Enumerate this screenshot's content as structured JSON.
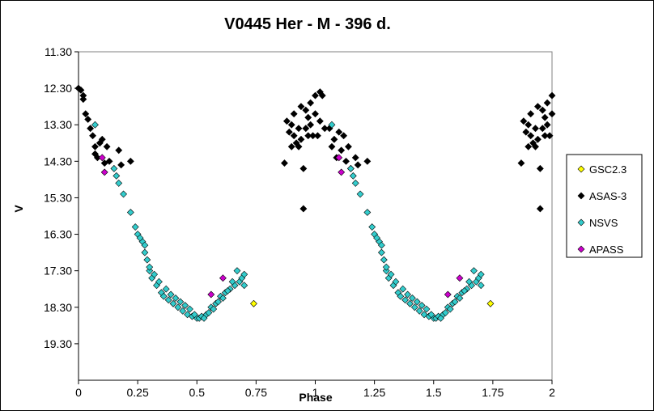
{
  "chart_data": {
    "type": "scatter",
    "title": "V0445 Her - M - 396 d.",
    "xlabel": "Phase",
    "ylabel": "V",
    "xlim": [
      0,
      2
    ],
    "ylim": [
      11.3,
      20.3
    ],
    "y_inverted": true,
    "x_ticks": [
      "0",
      "0.25",
      "0.5",
      "0.75",
      "1",
      "1.25",
      "1.5",
      "1.75",
      "2"
    ],
    "y_ticks": [
      "11.30",
      "12.30",
      "13.30",
      "14.30",
      "15.30",
      "16.30",
      "17.30",
      "18.30",
      "19.30"
    ],
    "legend_position": "right",
    "grid": false,
    "series": [
      {
        "name": "GSC2.3",
        "color": "#ffff00",
        "points": [
          [
            0.74,
            18.2
          ],
          [
            1.74,
            18.2
          ]
        ]
      },
      {
        "name": "ASAS-3",
        "color": "#000000",
        "points": [
          [
            0.0,
            12.3
          ],
          [
            0.01,
            12.35
          ],
          [
            0.02,
            12.5
          ],
          [
            0.02,
            12.6
          ],
          [
            0.03,
            13.0
          ],
          [
            0.04,
            13.15
          ],
          [
            0.05,
            13.4
          ],
          [
            0.06,
            13.6
          ],
          [
            0.07,
            13.9
          ],
          [
            0.07,
            14.1
          ],
          [
            0.08,
            14.2
          ],
          [
            0.09,
            13.8
          ],
          [
            0.1,
            13.7
          ],
          [
            0.11,
            14.35
          ],
          [
            0.12,
            13.9
          ],
          [
            0.13,
            14.3
          ],
          [
            0.17,
            14.0
          ],
          [
            0.18,
            14.4
          ],
          [
            0.22,
            14.3
          ],
          [
            0.87,
            14.35
          ],
          [
            0.88,
            13.2
          ],
          [
            0.89,
            13.5
          ],
          [
            0.9,
            13.3
          ],
          [
            0.9,
            13.9
          ],
          [
            0.91,
            13.0
          ],
          [
            0.91,
            13.6
          ],
          [
            0.92,
            13.8
          ],
          [
            0.93,
            13.4
          ],
          [
            0.93,
            13.9
          ],
          [
            0.94,
            12.8
          ],
          [
            0.94,
            13.7
          ],
          [
            0.95,
            14.5
          ],
          [
            0.95,
            15.6
          ],
          [
            0.96,
            12.9
          ],
          [
            0.96,
            13.4
          ],
          [
            0.97,
            13.1
          ],
          [
            0.97,
            13.6
          ],
          [
            0.98,
            12.7
          ],
          [
            0.98,
            13.3
          ],
          [
            0.99,
            13.6
          ],
          [
            1.0,
            12.5
          ],
          [
            1.0,
            13.0
          ],
          [
            1.01,
            13.6
          ],
          [
            1.02,
            12.4
          ],
          [
            1.02,
            13.2
          ],
          [
            1.03,
            12.5
          ],
          [
            1.04,
            13.4
          ],
          [
            1.06,
            13.4
          ],
          [
            1.07,
            13.9
          ],
          [
            1.08,
            13.7
          ],
          [
            1.09,
            14.2
          ],
          [
            1.1,
            13.5
          ],
          [
            1.11,
            14.0
          ],
          [
            1.12,
            13.6
          ],
          [
            1.13,
            14.3
          ],
          [
            1.14,
            13.9
          ],
          [
            1.15,
            14.5
          ],
          [
            1.17,
            14.2
          ],
          [
            1.18,
            14.4
          ],
          [
            1.22,
            14.3
          ],
          [
            1.87,
            14.35
          ],
          [
            1.88,
            13.2
          ],
          [
            1.89,
            13.5
          ],
          [
            1.9,
            13.3
          ],
          [
            1.9,
            13.9
          ],
          [
            1.91,
            13.0
          ],
          [
            1.91,
            13.6
          ],
          [
            1.92,
            13.8
          ],
          [
            1.93,
            13.4
          ],
          [
            1.93,
            13.9
          ],
          [
            1.94,
            12.8
          ],
          [
            1.94,
            13.7
          ],
          [
            1.95,
            14.5
          ],
          [
            1.95,
            15.6
          ],
          [
            1.96,
            12.9
          ],
          [
            1.96,
            13.4
          ],
          [
            1.97,
            13.1
          ],
          [
            1.97,
            13.6
          ],
          [
            1.98,
            12.7
          ],
          [
            1.98,
            13.3
          ],
          [
            1.99,
            13.6
          ],
          [
            2.0,
            12.5
          ],
          [
            2.0,
            13.0
          ]
        ]
      },
      {
        "name": "NSVS",
        "color": "#33cccc",
        "points": [
          [
            0.07,
            13.3
          ],
          [
            0.15,
            14.5
          ],
          [
            0.16,
            14.7
          ],
          [
            0.17,
            14.9
          ],
          [
            0.19,
            15.2
          ],
          [
            0.22,
            15.7
          ],
          [
            0.24,
            16.1
          ],
          [
            0.25,
            16.3
          ],
          [
            0.27,
            16.5
          ],
          [
            0.28,
            16.8
          ],
          [
            0.29,
            17.0
          ],
          [
            0.3,
            17.3
          ],
          [
            0.31,
            17.5
          ],
          [
            0.33,
            17.7
          ],
          [
            0.35,
            17.9
          ],
          [
            0.36,
            18.0
          ],
          [
            0.38,
            18.1
          ],
          [
            0.4,
            18.2
          ],
          [
            0.42,
            18.3
          ],
          [
            0.44,
            18.4
          ],
          [
            0.46,
            18.5
          ],
          [
            0.48,
            18.55
          ],
          [
            0.5,
            18.6
          ],
          [
            0.51,
            18.6
          ],
          [
            0.52,
            18.55
          ],
          [
            0.54,
            18.5
          ],
          [
            0.56,
            18.3
          ],
          [
            0.58,
            18.2
          ],
          [
            0.6,
            18.0
          ],
          [
            0.62,
            17.9
          ],
          [
            0.64,
            17.8
          ],
          [
            0.66,
            17.7
          ],
          [
            0.68,
            17.6
          ],
          [
            0.69,
            17.5
          ],
          [
            0.7,
            17.4
          ],
          [
            0.7,
            17.7
          ],
          [
            0.67,
            17.3
          ],
          [
            0.65,
            17.6
          ],
          [
            0.63,
            17.85
          ],
          [
            0.61,
            18.05
          ],
          [
            0.59,
            18.15
          ],
          [
            0.57,
            18.35
          ],
          [
            0.55,
            18.45
          ],
          [
            0.53,
            18.6
          ],
          [
            0.49,
            18.5
          ],
          [
            0.47,
            18.35
          ],
          [
            0.45,
            18.25
          ],
          [
            0.43,
            18.15
          ],
          [
            0.41,
            18.05
          ],
          [
            0.39,
            17.95
          ],
          [
            0.37,
            17.8
          ],
          [
            0.34,
            17.6
          ],
          [
            0.32,
            17.4
          ],
          [
            0.3,
            17.2
          ],
          [
            0.28,
            16.6
          ],
          [
            0.26,
            16.4
          ],
          [
            1.07,
            13.3
          ],
          [
            1.15,
            14.5
          ],
          [
            1.16,
            14.7
          ],
          [
            1.17,
            14.9
          ],
          [
            1.19,
            15.2
          ],
          [
            1.22,
            15.7
          ],
          [
            1.24,
            16.1
          ],
          [
            1.25,
            16.3
          ],
          [
            1.27,
            16.5
          ],
          [
            1.28,
            16.8
          ],
          [
            1.29,
            17.0
          ],
          [
            1.3,
            17.3
          ],
          [
            1.31,
            17.5
          ],
          [
            1.33,
            17.7
          ],
          [
            1.35,
            17.9
          ],
          [
            1.36,
            18.0
          ],
          [
            1.38,
            18.1
          ],
          [
            1.4,
            18.2
          ],
          [
            1.42,
            18.3
          ],
          [
            1.44,
            18.4
          ],
          [
            1.46,
            18.5
          ],
          [
            1.48,
            18.55
          ],
          [
            1.5,
            18.6
          ],
          [
            1.51,
            18.6
          ],
          [
            1.52,
            18.55
          ],
          [
            1.54,
            18.5
          ],
          [
            1.56,
            18.3
          ],
          [
            1.58,
            18.2
          ],
          [
            1.6,
            18.0
          ],
          [
            1.62,
            17.9
          ],
          [
            1.64,
            17.8
          ],
          [
            1.66,
            17.7
          ],
          [
            1.68,
            17.6
          ],
          [
            1.69,
            17.5
          ],
          [
            1.7,
            17.4
          ],
          [
            1.7,
            17.7
          ],
          [
            1.67,
            17.3
          ],
          [
            1.65,
            17.6
          ],
          [
            1.63,
            17.85
          ],
          [
            1.61,
            18.05
          ],
          [
            1.59,
            18.15
          ],
          [
            1.57,
            18.35
          ],
          [
            1.55,
            18.45
          ],
          [
            1.53,
            18.6
          ],
          [
            1.49,
            18.5
          ],
          [
            1.47,
            18.35
          ],
          [
            1.45,
            18.25
          ],
          [
            1.43,
            18.15
          ],
          [
            1.41,
            18.05
          ],
          [
            1.39,
            17.95
          ],
          [
            1.37,
            17.8
          ],
          [
            1.34,
            17.6
          ],
          [
            1.32,
            17.4
          ],
          [
            1.3,
            17.2
          ],
          [
            1.28,
            16.6
          ],
          [
            1.26,
            16.4
          ]
        ]
      },
      {
        "name": "APASS",
        "color": "#cc00cc",
        "points": [
          [
            0.1,
            14.2
          ],
          [
            0.11,
            14.6
          ],
          [
            0.56,
            17.95
          ],
          [
            0.61,
            17.5
          ],
          [
            1.1,
            14.2
          ],
          [
            1.11,
            14.6
          ],
          [
            1.56,
            17.95
          ],
          [
            1.61,
            17.5
          ]
        ]
      }
    ]
  }
}
